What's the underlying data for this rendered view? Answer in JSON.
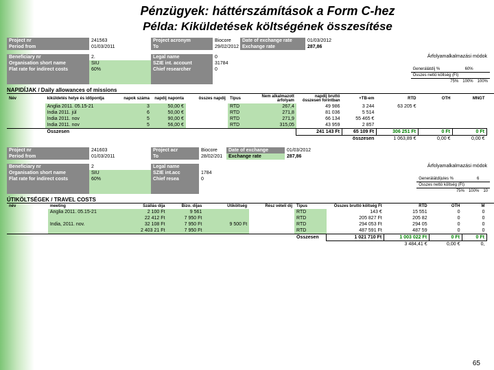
{
  "title": "Pénzügyek: háttérszámítások a  Form C-hez",
  "subtitle": "Példa: Kiküldetések költségének összesítése",
  "block1": {
    "hdr": {
      "projnr_l": "Project nr",
      "projnr_v": "241563",
      "period_l": "Period from",
      "period_v": "01/03/2011",
      "acr_l": "Project acronym",
      "acr_v": "Biocore",
      "to_l": "To",
      "to_v": "29/02/2012",
      "exdate_l": "Date of exchange rate",
      "exdate_v": "01/03/2012",
      "exrate_l": "Exchange rate",
      "exrate_v": "287,86",
      "ben_l": "Beneficiary nr",
      "ben_v": "2.",
      "org_l": "Organisation short name",
      "org_v": "SIU",
      "flat_l": "Flat rate for indirect costs",
      "flat_v": "60%",
      "legal_l": "Legal name",
      "legal_v": "0",
      "szie_l": "SZIE int. account",
      "szie_v": "31784",
      "chief_l": "Chief researcher",
      "chief_v": "0"
    },
    "arfo_title": "Árfolyamalkalmazási módok",
    "arfo_row1": {
      "a": "Generálátdíj %",
      "b": "60%"
    },
    "arfo_head": {
      "a": "Összes nettó költség (Ft)",
      "b": "75%",
      "c": "100%",
      "d": "100%"
    },
    "section": "NAPIDÍJAK / Daily allowances of missions",
    "cols": {
      "nev": "Név",
      "kik": "kiküldetés helye és időpontja",
      "napok": "napok száma",
      "napd": "napdíj naponta",
      "osszn": "összes napdíj",
      "tipus": "Típus",
      "nalk": "Nem alkalmazott árfolyam",
      "brutto": "napdíj bruttó összesen forintban",
      "tbem": "+TB-em",
      "rtd": "RTD",
      "oth": "OTH",
      "mngt": "MNGT"
    },
    "rows": [
      {
        "kik": "Anglia 2011. 05.15-21",
        "napok": "3",
        "napd": "50,00 €",
        "osszn": "",
        "tipus": "RTD",
        "nalk": "267,4",
        "br": "49 986",
        "tb": "3 244",
        "rtd": "63 205 €",
        "oth": "",
        "mngt": ""
      },
      {
        "kik": "India 2011. júl",
        "napok": "6",
        "napd": "50,00 €",
        "osszn": "",
        "tipus": "RTD",
        "nalk": "271,8",
        "br": "81 036",
        "tb": "5 514",
        "rtd": "",
        "oth": "",
        "mngt": ""
      },
      {
        "kik": "India 2011. nov",
        "napok": "5",
        "napd": "90,00 €",
        "osszn": "",
        "tipus": "RTD",
        "nalk": "271,9",
        "br": "66 134",
        "tb": "55 465 €",
        "rtd": "",
        "oth": "",
        "mngt": ""
      },
      {
        "kik": "India 2011. nov",
        "napok": "5",
        "napd": "56,00 €",
        "osszn": "",
        "tipus": "RTD",
        "nalk": "315,05",
        "br": "43 959",
        "tb": "2 857",
        "rtd": "",
        "oth": "",
        "mngt": ""
      }
    ],
    "sum": {
      "l": "Összesen",
      "v1": "241 143 Ft",
      "v2": "65 109 Ft",
      "v3": "306 251 Ft",
      "v4": "0 Ft",
      "v5": "0 Ft"
    },
    "sum2": {
      "l": "összesen",
      "v1": "1 063,89 €",
      "v2": "0,00 €",
      "v3": "0,00 €"
    }
  },
  "block2": {
    "hdr": {
      "projnr_l": "Project nr",
      "projnr_v": "241603",
      "period_l": "Period from",
      "period_v": "01/03/2011",
      "acr_l": "Project acr",
      "acr_v": "Biocore",
      "to_l": "To",
      "to_v": "28/02/201",
      "exdate_l": "Date of exchange",
      "exdate_v": "01/03/2012",
      "exrate_l": "Exchange rate",
      "exrate_v": "287,86",
      "ben_l": "Beneficiary nr",
      "ben_v": "2",
      "org_l": "Organisation short name",
      "org_v": "SIU",
      "flat_l": "Flat rate for indirect costs",
      "flat_v": "60%",
      "legal_l": "Legal name",
      "legal_v": "",
      "szie_l": "SZIE int.acc",
      "szie_v": "1784",
      "chief_l": "Chief resea",
      "chief_v": "0"
    },
    "arfo_title": "Árfolyamalkalmazási módok",
    "arfo_row1": {
      "a": "Generálátdíjules %",
      "b": "6"
    },
    "arfo_head": {
      "a": "Összes nettó költség (Ft)",
      "b": "75%",
      "c": "100%",
      "d": "10"
    },
    "section": "ÚTIKÖLTSÉGEK / TRAVEL COSTS",
    "cols": {
      "nev": "név",
      "meet": "meeting",
      "szall": "Szállás díja",
      "bizo": "Bizo. díjas",
      "utik": "Útiköltség",
      "resz": "Rész vételi díj",
      "tipus": "Típus",
      "brutto": "Összes bruttó költség Ft",
      "rtd": "RTD",
      "oth": "OTH",
      "m": "M"
    },
    "rows": [
      {
        "meet": "Anglia 2011. 05.15-21",
        "szall": "2 100 Ft",
        "bizo": "9 561",
        "utik": "",
        "resz": "",
        "tipus": "RTD",
        "br": "143 €",
        "rtd": "15 551",
        "oth": "0",
        "m": "0"
      },
      {
        "meet": "",
        "szall": "22 412 Ft",
        "bizo": "7 950 Ft",
        "utik": "",
        "resz": "",
        "tipus": "RTD",
        "br": "205 827 Ft",
        "rtd": "205 82",
        "oth": "0",
        "m": "0"
      },
      {
        "meet": "India, 2011. nov.",
        "szall": "32 108 Ft",
        "bizo": "7 950 Ft",
        "utik": "9 500 Ft",
        "resz": "",
        "tipus": "RTD",
        "br": "294 053 Ft",
        "rtd": "294 05",
        "oth": "0",
        "m": "0"
      },
      {
        "meet": "",
        "szall": "2 403 21 Ft",
        "bizo": "7 950 Ft",
        "utik": "",
        "resz": "",
        "tipus": "RTD",
        "br": "487 591 Ft",
        "rtd": "487 59",
        "oth": "0",
        "m": "0"
      }
    ],
    "sum": {
      "l": "Összesen",
      "v1": "1 021 710 Ft",
      "v2": "1 003 022 Ft",
      "v3": "0 Ft",
      "v4": "0 Ft"
    },
    "sum2": {
      "v1": "3 484,41 €",
      "v2": "0,00 €",
      "v3": "0,"
    }
  },
  "page": "65"
}
